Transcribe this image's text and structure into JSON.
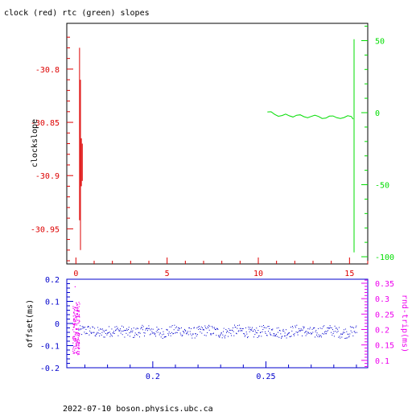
{
  "title": "clock (red) rtc (green) slopes",
  "footer": "2022-07-10  boson.physics.ubc.ca",
  "colors": {
    "red": "#dd0000",
    "green": "#00dd00",
    "blue": "#0000cc",
    "magenta": "#ee00ee",
    "black": "#000000"
  },
  "chart_data": [
    {
      "type": "line",
      "ylabel": "clockslope",
      "xlim": [
        -0.5,
        16
      ],
      "ylim_left": [
        -30.983,
        -30.757
      ],
      "ylim_right": [
        -105,
        62
      ],
      "x_ticks": [
        "0",
        "5",
        "10",
        "15"
      ],
      "y_ticks_left": [
        "-30.8",
        "-30.85",
        "-30.9",
        "-30.95"
      ],
      "y_ticks_right": [
        "50",
        "0",
        "-50",
        "-100"
      ],
      "series": [
        {
          "axis": "left",
          "color": "red",
          "segments": [
            {
              "x": [
                0.2,
                0.2
              ],
              "y": [
                -30.942,
                -30.78
              ]
            },
            {
              "x": [
                0.25,
                0.25
              ],
              "y": [
                -30.97,
                -30.81
              ]
            },
            {
              "x": [
                0.3,
                0.3
              ],
              "y": [
                -30.91,
                -30.865
              ]
            },
            {
              "x": [
                0.35,
                0.35
              ],
              "y": [
                -30.905,
                -30.87
              ]
            }
          ]
        },
        {
          "axis": "right",
          "color": "green",
          "line": {
            "x": [
              10.5,
              10.7,
              10.9,
              11.1,
              11.3,
              11.5,
              11.7,
              11.9,
              12.1,
              12.3,
              12.5,
              12.7,
              12.9,
              13.1,
              13.3,
              13.5,
              13.7,
              13.9,
              14.1,
              14.3,
              14.5,
              14.7,
              14.9,
              15.1,
              15.2
            ],
            "y": [
              0.5,
              0.6,
              -1.2,
              -2.5,
              -2.0,
              -1.0,
              -2.2,
              -3.0,
              -1.8,
              -1.5,
              -2.8,
              -3.5,
              -2.6,
              -1.8,
              -2.6,
              -4.0,
              -3.8,
              -2.4,
              -2.3,
              -3.5,
              -4.0,
              -3.4,
              -2.1,
              -2.7,
              -4.5
            ]
          },
          "segments": [
            {
              "x": [
                15.25,
                15.25
              ],
              "y": [
                -97,
                51
              ]
            }
          ]
        }
      ]
    },
    {
      "type": "scatter",
      "ylabel_left": "offset(ms)",
      "ylabel_right": "rnd-trip(ms)",
      "xlim": [
        0.162,
        0.295
      ],
      "ylim_left": [
        -0.2,
        0.2
      ],
      "ylim_right": [
        0.076,
        0.363
      ],
      "x_ticks": [
        "0.2",
        "0.25"
      ],
      "y_ticks_left": [
        "0.2",
        "0.1",
        "0",
        "-0.1",
        "-0.2"
      ],
      "y_ticks_right": [
        "0.35",
        "0.3",
        "0.25",
        "0.2",
        "0.15",
        "0.1"
      ],
      "series": [
        {
          "axis": "left",
          "color": "blue",
          "x_range": [
            0.167,
            0.29
          ],
          "baseline": -0.035,
          "spread": 0.025
        },
        {
          "axis": "right",
          "color": "magenta",
          "x_range": [
            0.1645,
            0.1675
          ],
          "y_range": [
            0.12,
            0.29
          ],
          "outlier": {
            "x": 0.1655,
            "y": 0.34
          }
        }
      ]
    }
  ]
}
